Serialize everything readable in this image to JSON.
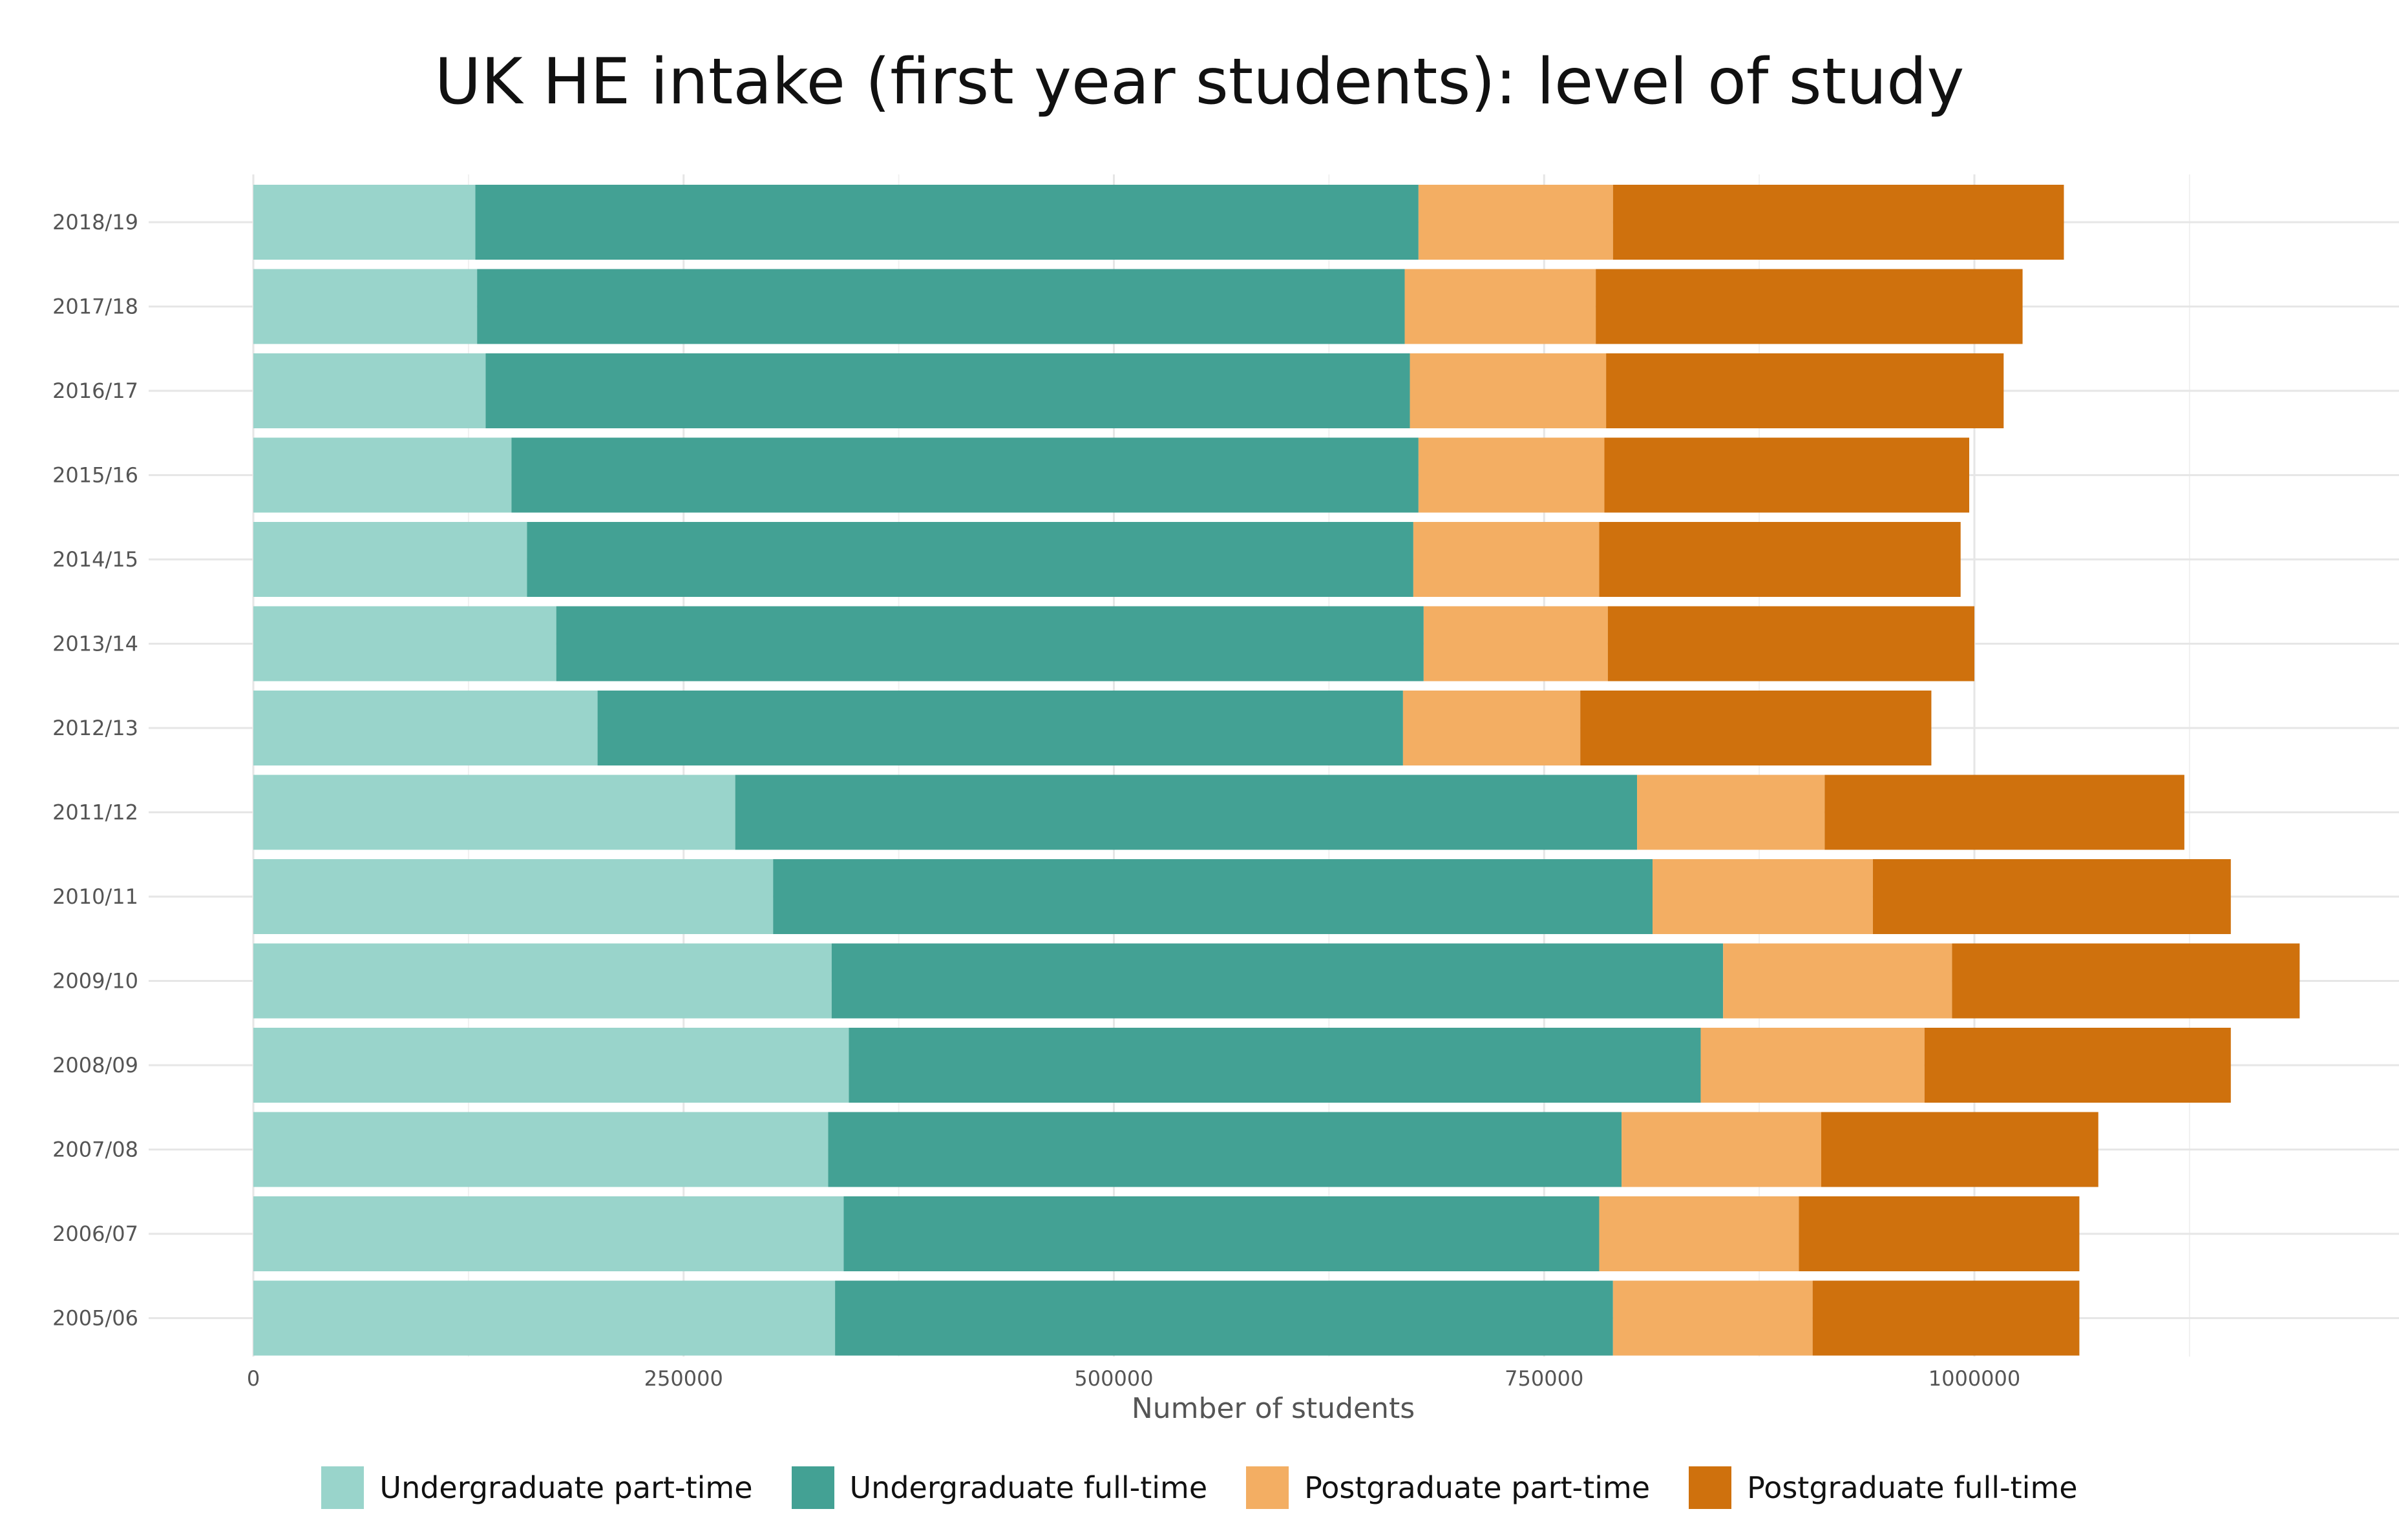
{
  "chart_data": {
    "type": "bar",
    "orientation": "horizontal",
    "stacked": true,
    "title": "UK HE intake (first year students): level of study",
    "xlabel": "Number of students",
    "ylabel": "",
    "xlim": [
      0,
      1245000
    ],
    "x_ticks": [
      "0",
      "250000",
      "500000",
      "750000",
      "1000000"
    ],
    "grid": true,
    "legend_position": "bottom",
    "categories": [
      "2018/19",
      "2017/18",
      "2016/17",
      "2015/16",
      "2014/15",
      "2013/14",
      "2012/13",
      "2011/12",
      "2010/11",
      "2009/10",
      "2008/09",
      "2007/08",
      "2006/07",
      "2005/06"
    ],
    "series": [
      {
        "name": "Undergraduate part-time",
        "color": "#99d4cb",
        "values": [
          129000,
          130000,
          135000,
          150000,
          159000,
          176000,
          200000,
          280000,
          302000,
          336000,
          346000,
          334000,
          343000,
          338000
        ]
      },
      {
        "name": "Undergraduate full-time",
        "color": "#43a194",
        "values": [
          548000,
          539000,
          537000,
          527000,
          515000,
          504000,
          468000,
          524000,
          511000,
          518000,
          495000,
          461000,
          439000,
          452000
        ]
      },
      {
        "name": "Postgraduate part-time",
        "color": "#f3ae63",
        "values": [
          113000,
          111000,
          114000,
          108000,
          108000,
          107000,
          103000,
          109000,
          128000,
          133000,
          130000,
          116000,
          116000,
          116000
        ]
      },
      {
        "name": "Postgraduate full-time",
        "color": "#cf710d",
        "values": [
          262000,
          248000,
          231000,
          212000,
          210000,
          213000,
          204000,
          209000,
          208000,
          202000,
          178000,
          161000,
          163000,
          155000
        ]
      }
    ]
  }
}
